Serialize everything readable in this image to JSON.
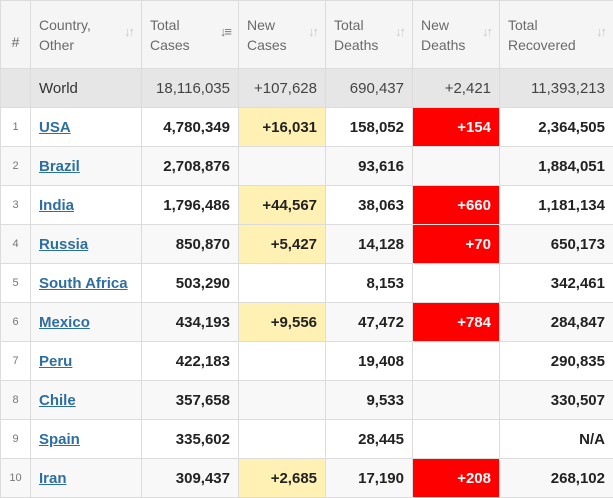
{
  "headers": {
    "idx": "#",
    "country": [
      "Country,",
      "Other"
    ],
    "total_cases": [
      "Total",
      "Cases"
    ],
    "new_cases": [
      "New",
      "Cases"
    ],
    "total_deaths": [
      "Total",
      "Deaths"
    ],
    "new_deaths": [
      "New",
      "Deaths"
    ],
    "total_recovered": [
      "Total",
      "Recovered"
    ],
    "sort_icon": "sort-arrows-icon",
    "sort_active_icon": "sort-desc-icon"
  },
  "world": {
    "country": "World",
    "total_cases": "18,116,035",
    "new_cases": "+107,628",
    "total_deaths": "690,437",
    "new_deaths": "+2,421",
    "total_recovered": "11,393,213"
  },
  "rows": [
    {
      "idx": "1",
      "country": "USA",
      "total_cases": "4,780,349",
      "new_cases": "+16,031",
      "total_deaths": "158,052",
      "new_deaths": "+154",
      "total_recovered": "2,364,505"
    },
    {
      "idx": "2",
      "country": "Brazil",
      "total_cases": "2,708,876",
      "new_cases": "",
      "total_deaths": "93,616",
      "new_deaths": "",
      "total_recovered": "1,884,051"
    },
    {
      "idx": "3",
      "country": "India",
      "total_cases": "1,796,486",
      "new_cases": "+44,567",
      "total_deaths": "38,063",
      "new_deaths": "+660",
      "total_recovered": "1,181,134"
    },
    {
      "idx": "4",
      "country": "Russia",
      "total_cases": "850,870",
      "new_cases": "+5,427",
      "total_deaths": "14,128",
      "new_deaths": "+70",
      "total_recovered": "650,173"
    },
    {
      "idx": "5",
      "country": "South Africa",
      "total_cases": "503,290",
      "new_cases": "",
      "total_deaths": "8,153",
      "new_deaths": "",
      "total_recovered": "342,461"
    },
    {
      "idx": "6",
      "country": "Mexico",
      "total_cases": "434,193",
      "new_cases": "+9,556",
      "total_deaths": "47,472",
      "new_deaths": "+784",
      "total_recovered": "284,847"
    },
    {
      "idx": "7",
      "country": "Peru",
      "total_cases": "422,183",
      "new_cases": "",
      "total_deaths": "19,408",
      "new_deaths": "",
      "total_recovered": "290,835"
    },
    {
      "idx": "8",
      "country": "Chile",
      "total_cases": "357,658",
      "new_cases": "",
      "total_deaths": "9,533",
      "new_deaths": "",
      "total_recovered": "330,507"
    },
    {
      "idx": "9",
      "country": "Spain",
      "total_cases": "335,602",
      "new_cases": "",
      "total_deaths": "28,445",
      "new_deaths": "",
      "total_recovered": "N/A"
    },
    {
      "idx": "10",
      "country": "Iran",
      "total_cases": "309,437",
      "new_cases": "+2,685",
      "total_deaths": "17,190",
      "new_deaths": "+208",
      "total_recovered": "268,102"
    }
  ],
  "colors": {
    "new_cases_bg": "#fff0b3",
    "new_deaths_bg": "#ff0000",
    "link": "#2d6fa3"
  }
}
